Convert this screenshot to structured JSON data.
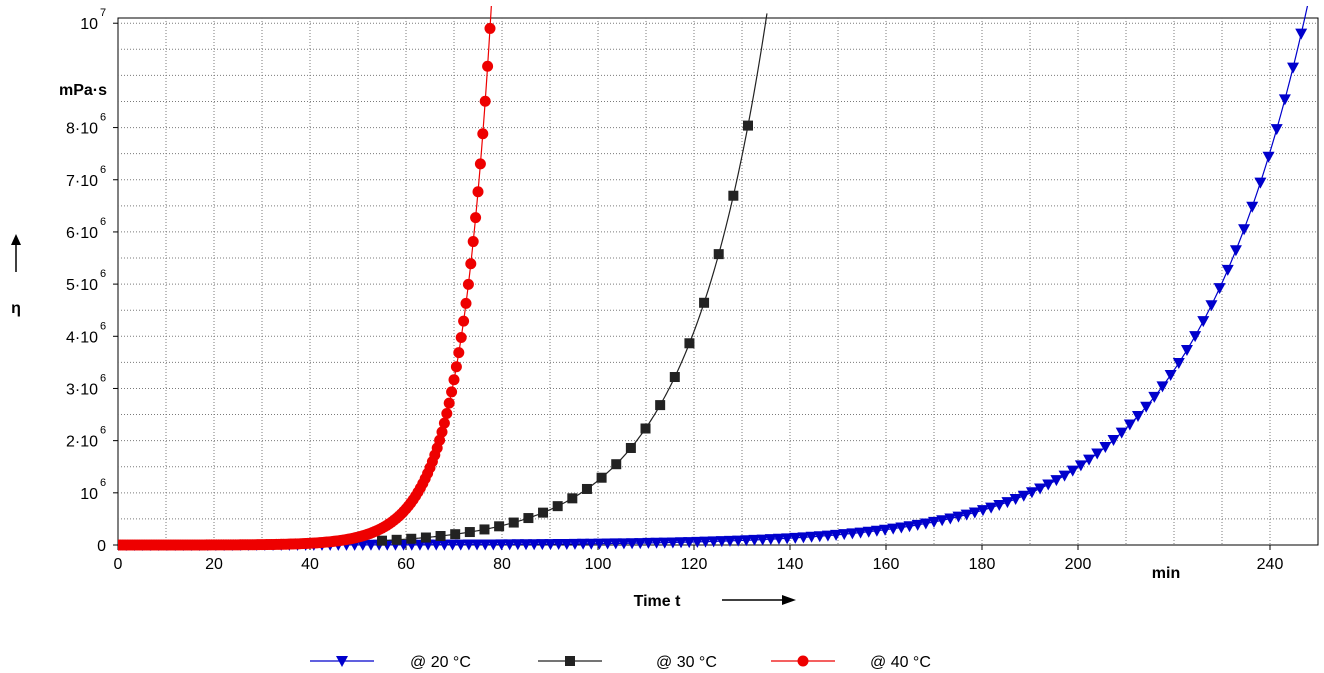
{
  "chart_data": {
    "type": "line",
    "xlabel": "Time t",
    "xunit": "min",
    "ylabel": "η",
    "yunit": "mPa·s",
    "xlim": [
      0,
      250
    ],
    "ylim": [
      0,
      10100000
    ],
    "grid": true,
    "legend_position": "bottom",
    "x_ticks": [
      {
        "value": 0,
        "label": "0"
      },
      {
        "value": 20,
        "label": "20"
      },
      {
        "value": 40,
        "label": "40"
      },
      {
        "value": 60,
        "label": "60"
      },
      {
        "value": 80,
        "label": "80"
      },
      {
        "value": 100,
        "label": "100"
      },
      {
        "value": 120,
        "label": "120"
      },
      {
        "value": 140,
        "label": "140"
      },
      {
        "value": 160,
        "label": "160"
      },
      {
        "value": 180,
        "label": "180"
      },
      {
        "value": 200,
        "label": "200"
      },
      {
        "value": 240,
        "label": "240"
      }
    ],
    "y_ticks": [
      {
        "value": 0,
        "base": "0",
        "exp": ""
      },
      {
        "value": 1000000,
        "base": "10",
        "exp": "6"
      },
      {
        "value": 2000000,
        "base": "2·10",
        "exp": "6"
      },
      {
        "value": 3000000,
        "base": "3·10",
        "exp": "6"
      },
      {
        "value": 4000000,
        "base": "4·10",
        "exp": "6"
      },
      {
        "value": 5000000,
        "base": "5·10",
        "exp": "6"
      },
      {
        "value": 6000000,
        "base": "6·10",
        "exp": "6"
      },
      {
        "value": 7000000,
        "base": "7·10",
        "exp": "6"
      },
      {
        "value": 8000000,
        "base": "8·10",
        "exp": "6"
      },
      {
        "value": 10000000,
        "base": "10",
        "exp": "7"
      }
    ],
    "series": [
      {
        "name": "@ 20 °C",
        "color": "#0000cc",
        "marker": "triangle-down",
        "model": {
          "a": 0.0405,
          "t0": 246.5,
          "eta_ref": 9800000,
          "x_start": 0,
          "x_step": 1.7,
          "x_end": 246.5,
          "x_curve_end": 248.5
        }
      },
      {
        "name": "@ 30 °C",
        "color": "#222222",
        "marker": "square",
        "model": {
          "a": 0.06,
          "t0": 133.5,
          "eta_ref": 9200000,
          "x_start": 55,
          "x_step": 3.05,
          "x_end": 133.5,
          "x_curve_end": 135.2
        }
      },
      {
        "name": "@ 40 °C",
        "color": "#ee0000",
        "marker": "circle",
        "model": {
          "a": 0.152,
          "t0": 77.5,
          "eta_ref": 9900000,
          "x_start": 0,
          "x_step": 0.5,
          "x_end": 77.5,
          "x_curve_end": 78.3
        }
      }
    ]
  }
}
